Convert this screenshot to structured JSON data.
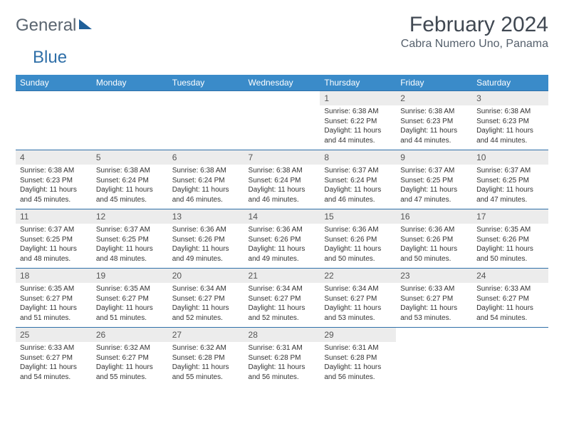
{
  "brand": {
    "part1": "General",
    "part2": "Blue"
  },
  "title": "February 2024",
  "location": "Cabra Numero Uno, Panama",
  "colors": {
    "header_bg": "#3a8bc9",
    "header_text": "#ffffff",
    "row_divider": "#2f6fa8",
    "daynum_bg": "#ececec",
    "text": "#333333",
    "brand_gray": "#5a6570",
    "brand_blue": "#2f6fa8"
  },
  "weekdays": [
    "Sunday",
    "Monday",
    "Tuesday",
    "Wednesday",
    "Thursday",
    "Friday",
    "Saturday"
  ],
  "weeks": [
    [
      null,
      null,
      null,
      null,
      {
        "n": "1",
        "sr": "Sunrise: 6:38 AM",
        "ss": "Sunset: 6:22 PM",
        "d1": "Daylight: 11 hours",
        "d2": "and 44 minutes."
      },
      {
        "n": "2",
        "sr": "Sunrise: 6:38 AM",
        "ss": "Sunset: 6:23 PM",
        "d1": "Daylight: 11 hours",
        "d2": "and 44 minutes."
      },
      {
        "n": "3",
        "sr": "Sunrise: 6:38 AM",
        "ss": "Sunset: 6:23 PM",
        "d1": "Daylight: 11 hours",
        "d2": "and 44 minutes."
      }
    ],
    [
      {
        "n": "4",
        "sr": "Sunrise: 6:38 AM",
        "ss": "Sunset: 6:23 PM",
        "d1": "Daylight: 11 hours",
        "d2": "and 45 minutes."
      },
      {
        "n": "5",
        "sr": "Sunrise: 6:38 AM",
        "ss": "Sunset: 6:24 PM",
        "d1": "Daylight: 11 hours",
        "d2": "and 45 minutes."
      },
      {
        "n": "6",
        "sr": "Sunrise: 6:38 AM",
        "ss": "Sunset: 6:24 PM",
        "d1": "Daylight: 11 hours",
        "d2": "and 46 minutes."
      },
      {
        "n": "7",
        "sr": "Sunrise: 6:38 AM",
        "ss": "Sunset: 6:24 PM",
        "d1": "Daylight: 11 hours",
        "d2": "and 46 minutes."
      },
      {
        "n": "8",
        "sr": "Sunrise: 6:37 AM",
        "ss": "Sunset: 6:24 PM",
        "d1": "Daylight: 11 hours",
        "d2": "and 46 minutes."
      },
      {
        "n": "9",
        "sr": "Sunrise: 6:37 AM",
        "ss": "Sunset: 6:25 PM",
        "d1": "Daylight: 11 hours",
        "d2": "and 47 minutes."
      },
      {
        "n": "10",
        "sr": "Sunrise: 6:37 AM",
        "ss": "Sunset: 6:25 PM",
        "d1": "Daylight: 11 hours",
        "d2": "and 47 minutes."
      }
    ],
    [
      {
        "n": "11",
        "sr": "Sunrise: 6:37 AM",
        "ss": "Sunset: 6:25 PM",
        "d1": "Daylight: 11 hours",
        "d2": "and 48 minutes."
      },
      {
        "n": "12",
        "sr": "Sunrise: 6:37 AM",
        "ss": "Sunset: 6:25 PM",
        "d1": "Daylight: 11 hours",
        "d2": "and 48 minutes."
      },
      {
        "n": "13",
        "sr": "Sunrise: 6:36 AM",
        "ss": "Sunset: 6:26 PM",
        "d1": "Daylight: 11 hours",
        "d2": "and 49 minutes."
      },
      {
        "n": "14",
        "sr": "Sunrise: 6:36 AM",
        "ss": "Sunset: 6:26 PM",
        "d1": "Daylight: 11 hours",
        "d2": "and 49 minutes."
      },
      {
        "n": "15",
        "sr": "Sunrise: 6:36 AM",
        "ss": "Sunset: 6:26 PM",
        "d1": "Daylight: 11 hours",
        "d2": "and 50 minutes."
      },
      {
        "n": "16",
        "sr": "Sunrise: 6:36 AM",
        "ss": "Sunset: 6:26 PM",
        "d1": "Daylight: 11 hours",
        "d2": "and 50 minutes."
      },
      {
        "n": "17",
        "sr": "Sunrise: 6:35 AM",
        "ss": "Sunset: 6:26 PM",
        "d1": "Daylight: 11 hours",
        "d2": "and 50 minutes."
      }
    ],
    [
      {
        "n": "18",
        "sr": "Sunrise: 6:35 AM",
        "ss": "Sunset: 6:27 PM",
        "d1": "Daylight: 11 hours",
        "d2": "and 51 minutes."
      },
      {
        "n": "19",
        "sr": "Sunrise: 6:35 AM",
        "ss": "Sunset: 6:27 PM",
        "d1": "Daylight: 11 hours",
        "d2": "and 51 minutes."
      },
      {
        "n": "20",
        "sr": "Sunrise: 6:34 AM",
        "ss": "Sunset: 6:27 PM",
        "d1": "Daylight: 11 hours",
        "d2": "and 52 minutes."
      },
      {
        "n": "21",
        "sr": "Sunrise: 6:34 AM",
        "ss": "Sunset: 6:27 PM",
        "d1": "Daylight: 11 hours",
        "d2": "and 52 minutes."
      },
      {
        "n": "22",
        "sr": "Sunrise: 6:34 AM",
        "ss": "Sunset: 6:27 PM",
        "d1": "Daylight: 11 hours",
        "d2": "and 53 minutes."
      },
      {
        "n": "23",
        "sr": "Sunrise: 6:33 AM",
        "ss": "Sunset: 6:27 PM",
        "d1": "Daylight: 11 hours",
        "d2": "and 53 minutes."
      },
      {
        "n": "24",
        "sr": "Sunrise: 6:33 AM",
        "ss": "Sunset: 6:27 PM",
        "d1": "Daylight: 11 hours",
        "d2": "and 54 minutes."
      }
    ],
    [
      {
        "n": "25",
        "sr": "Sunrise: 6:33 AM",
        "ss": "Sunset: 6:27 PM",
        "d1": "Daylight: 11 hours",
        "d2": "and 54 minutes."
      },
      {
        "n": "26",
        "sr": "Sunrise: 6:32 AM",
        "ss": "Sunset: 6:27 PM",
        "d1": "Daylight: 11 hours",
        "d2": "and 55 minutes."
      },
      {
        "n": "27",
        "sr": "Sunrise: 6:32 AM",
        "ss": "Sunset: 6:28 PM",
        "d1": "Daylight: 11 hours",
        "d2": "and 55 minutes."
      },
      {
        "n": "28",
        "sr": "Sunrise: 6:31 AM",
        "ss": "Sunset: 6:28 PM",
        "d1": "Daylight: 11 hours",
        "d2": "and 56 minutes."
      },
      {
        "n": "29",
        "sr": "Sunrise: 6:31 AM",
        "ss": "Sunset: 6:28 PM",
        "d1": "Daylight: 11 hours",
        "d2": "and 56 minutes."
      },
      null,
      null
    ]
  ]
}
